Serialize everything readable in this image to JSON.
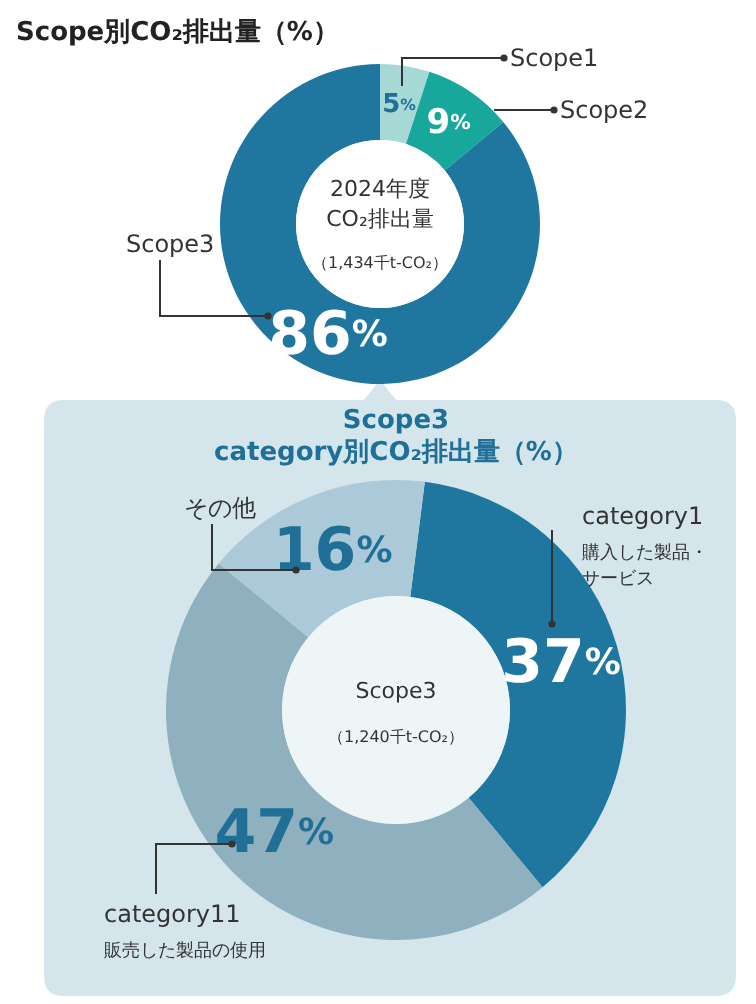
{
  "chart_data": [
    {
      "type": "donut",
      "title": "Scope別CO₂排出量（%）",
      "categories": [
        "Scope1",
        "Scope2",
        "Scope3"
      ],
      "values": [
        5,
        9,
        86
      ],
      "colors": [
        "#a6d9d6",
        "#17a89b",
        "#1f77a0"
      ],
      "value_labels": [
        "5%",
        "9%",
        "86%"
      ],
      "annotations": [
        "2024年度\nCO₂排出量",
        "（1,434千t-CO₂）"
      ]
    },
    {
      "type": "donut",
      "title": "Scope3\ncategory別CO₂排出量（%）",
      "categories": [
        "category1\n購入した製品・サービス",
        "category11\n販売した製品の使用",
        "その他"
      ],
      "values": [
        37,
        47,
        16
      ],
      "colors": [
        "#1f77a0",
        "#8eb0bf",
        "#abc9d8"
      ],
      "value_labels": [
        "37%",
        "47%",
        "16%"
      ],
      "annotations": [
        "Scope3",
        "（1,240千t-CO₂）"
      ]
    }
  ]
}
